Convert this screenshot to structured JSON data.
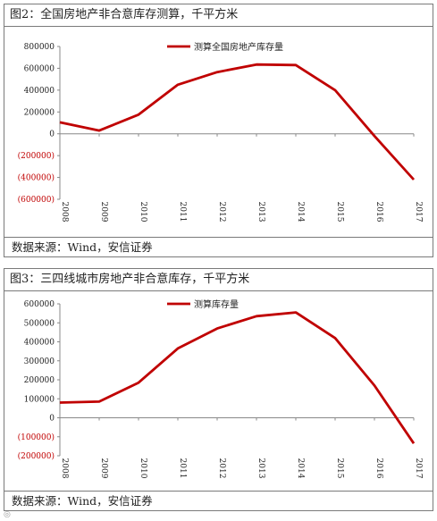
{
  "charts": [
    {
      "title": "图2：全国房地产非合意库存测算，千平方米",
      "source": "数据来源：Wind，安信证券"
    },
    {
      "title": "图3：三四线城市房地产非合意库存，千平方米",
      "source": "数据来源：Wind，安信证券"
    }
  ],
  "chart_data": [
    {
      "type": "line",
      "title": "图2：全国房地产非合意库存测算，千平方米",
      "x": [
        "2008",
        "2009",
        "2010",
        "2011",
        "2012",
        "2013",
        "2014",
        "2015",
        "2016",
        "2017"
      ],
      "series": [
        {
          "name": "测算全国房地产库存量",
          "values": [
            105000,
            30000,
            175000,
            450000,
            565000,
            635000,
            630000,
            400000,
            -20000,
            -420000
          ],
          "color": "#c00000"
        }
      ],
      "ylim": [
        -600000,
        800000
      ],
      "yticks": [
        800000,
        600000,
        400000,
        200000,
        0,
        -200000,
        -400000,
        -600000
      ],
      "ytick_labels": [
        "800000",
        "600000",
        "400000",
        "200000",
        "0",
        "(200000)",
        "(400000)",
        "(600000)"
      ],
      "negative_label_color": "#c00000",
      "legend": "top-center",
      "grid": false
    },
    {
      "type": "line",
      "title": "图3：三四线城市房地产非合意库存，千平方米",
      "x": [
        "2008",
        "2009",
        "2010",
        "2011",
        "2012",
        "2013",
        "2014",
        "2015",
        "2016",
        "2017"
      ],
      "series": [
        {
          "name": "测算库存量",
          "values": [
            80000,
            85000,
            185000,
            365000,
            470000,
            535000,
            555000,
            420000,
            170000,
            -135000
          ],
          "color": "#c00000"
        }
      ],
      "ylim": [
        -200000,
        600000
      ],
      "yticks": [
        600000,
        500000,
        400000,
        300000,
        200000,
        100000,
        0,
        -100000,
        -200000
      ],
      "ytick_labels": [
        "600000",
        "500000",
        "400000",
        "300000",
        "200000",
        "100000",
        "0",
        "(100000)",
        "(200000)"
      ],
      "negative_label_color": "#c00000",
      "legend": "top-center",
      "grid": false
    }
  ]
}
